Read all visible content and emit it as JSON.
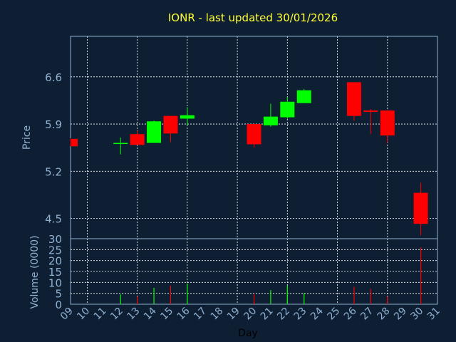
{
  "chart_data": {
    "type": "candlestick",
    "title": "IONR - last updated 30/01/2026",
    "xlabel": "Day",
    "price_ylabel": "Price",
    "volume_ylabel": "Volume (0000)",
    "x_ticks": [
      "09",
      "10",
      "11",
      "12",
      "13",
      "14",
      "15",
      "16",
      "17",
      "18",
      "19",
      "20",
      "21",
      "22",
      "23",
      "24",
      "25",
      "26",
      "27",
      "28",
      "29",
      "30",
      "31"
    ],
    "price_ticks": [
      "6.6",
      "5.9",
      "5.2",
      "4.5"
    ],
    "price_tick_values": [
      6.6,
      5.9,
      5.2,
      4.5
    ],
    "volume_ticks": [
      "30",
      "25",
      "20",
      "15",
      "10",
      "5",
      "0"
    ],
    "volume_tick_values": [
      30,
      25,
      20,
      15,
      10,
      5,
      0
    ],
    "price_ylim": [
      4.2,
      7.2
    ],
    "volume_ylim": [
      0,
      30
    ],
    "xlim": [
      9,
      31
    ],
    "grid": true,
    "colors": {
      "up": "#00ff00",
      "down": "#ff0000",
      "background": "#0e1f33",
      "grid": "#ffffff",
      "title": "#ffff33",
      "axis_text": "#8fb0d0"
    },
    "candles": [
      {
        "day": 9,
        "open": 5.68,
        "high": 5.69,
        "low": 5.57,
        "close": 5.57
      },
      {
        "day": 12,
        "open": 5.61,
        "high": 5.7,
        "low": 5.45,
        "close": 5.62
      },
      {
        "day": 13,
        "open": 5.75,
        "high": 5.8,
        "low": 5.59,
        "close": 5.59
      },
      {
        "day": 14,
        "open": 5.62,
        "high": 5.95,
        "low": 5.62,
        "close": 5.94
      },
      {
        "day": 15,
        "open": 6.02,
        "high": 6.02,
        "low": 5.63,
        "close": 5.76
      },
      {
        "day": 16,
        "open": 5.98,
        "high": 6.15,
        "low": 5.88,
        "close": 6.03
      },
      {
        "day": 20,
        "open": 5.9,
        "high": 5.9,
        "low": 5.55,
        "close": 5.6
      },
      {
        "day": 21,
        "open": 5.88,
        "high": 6.2,
        "low": 5.86,
        "close": 6.01
      },
      {
        "day": 22,
        "open": 6.0,
        "high": 6.3,
        "low": 5.98,
        "close": 6.23
      },
      {
        "day": 23,
        "open": 6.21,
        "high": 6.42,
        "low": 6.21,
        "close": 6.4
      },
      {
        "day": 26,
        "open": 6.52,
        "high": 6.52,
        "low": 5.95,
        "close": 6.02
      },
      {
        "day": 27,
        "open": 6.1,
        "high": 6.12,
        "low": 5.75,
        "close": 6.08
      },
      {
        "day": 28,
        "open": 6.1,
        "high": 6.1,
        "low": 5.62,
        "close": 5.73
      },
      {
        "day": 30,
        "open": 4.88,
        "high": 5.03,
        "low": 4.25,
        "close": 4.42
      }
    ],
    "volumes": [
      {
        "day": 9,
        "value": 0,
        "dir": "down"
      },
      {
        "day": 12,
        "value": 4.5,
        "dir": "up"
      },
      {
        "day": 13,
        "value": 3.5,
        "dir": "down"
      },
      {
        "day": 14,
        "value": 7.5,
        "dir": "up"
      },
      {
        "day": 15,
        "value": 8.5,
        "dir": "down"
      },
      {
        "day": 16,
        "value": 9.5,
        "dir": "up"
      },
      {
        "day": 20,
        "value": 4.5,
        "dir": "down"
      },
      {
        "day": 21,
        "value": 6.5,
        "dir": "up"
      },
      {
        "day": 22,
        "value": 8.5,
        "dir": "up"
      },
      {
        "day": 23,
        "value": 5.0,
        "dir": "up"
      },
      {
        "day": 26,
        "value": 8.0,
        "dir": "down"
      },
      {
        "day": 27,
        "value": 7.0,
        "dir": "down"
      },
      {
        "day": 28,
        "value": 3.5,
        "dir": "down"
      },
      {
        "day": 30,
        "value": 26.0,
        "dir": "down"
      }
    ]
  }
}
